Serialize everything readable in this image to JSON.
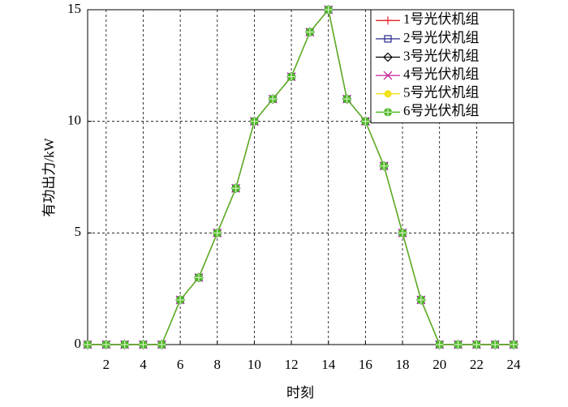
{
  "chart_data": {
    "type": "line",
    "x_label": "时刻",
    "y_label": "有功出力/kW",
    "x": [
      1,
      2,
      3,
      4,
      5,
      6,
      7,
      8,
      9,
      10,
      11,
      12,
      13,
      14,
      15,
      16,
      17,
      18,
      19,
      20,
      21,
      22,
      23,
      24
    ],
    "xlim": [
      1,
      24
    ],
    "xticks": [
      2,
      4,
      6,
      8,
      10,
      12,
      14,
      16,
      18,
      20,
      22,
      24
    ],
    "ylim": [
      0,
      15
    ],
    "yticks": [
      0,
      5,
      10,
      15
    ],
    "grid": true,
    "legend": "upper right",
    "series": [
      {
        "name": "1号光伏机组",
        "color": "#e8202a",
        "marker": "plus",
        "values": [
          0,
          0,
          0,
          0,
          0,
          2,
          3,
          5,
          7,
          10,
          11,
          12,
          14,
          15,
          11,
          10,
          8,
          5,
          2,
          0,
          0,
          0,
          0,
          0
        ]
      },
      {
        "name": "2号光伏机组",
        "color": "#2a2a8c",
        "marker": "square",
        "values": [
          0,
          0,
          0,
          0,
          0,
          2,
          3,
          5,
          7,
          10,
          11,
          12,
          14,
          15,
          11,
          10,
          8,
          5,
          2,
          0,
          0,
          0,
          0,
          0
        ]
      },
      {
        "name": "3号光伏机组",
        "color": "#000000",
        "marker": "diamond",
        "values": [
          0,
          0,
          0,
          0,
          0,
          2,
          3,
          5,
          7,
          10,
          11,
          12,
          14,
          15,
          11,
          10,
          8,
          5,
          2,
          0,
          0,
          0,
          0,
          0
        ]
      },
      {
        "name": "4号光伏机组",
        "color": "#c0219a",
        "marker": "x",
        "values": [
          0,
          0,
          0,
          0,
          0,
          2,
          3,
          5,
          7,
          10,
          11,
          12,
          14,
          15,
          11,
          10,
          8,
          5,
          2,
          0,
          0,
          0,
          0,
          0
        ]
      },
      {
        "name": "5号光伏机组",
        "color": "#f2e21c",
        "marker": "circle",
        "values": [
          0,
          0,
          0,
          0,
          0,
          2,
          3,
          5,
          7,
          10,
          11,
          12,
          14,
          15,
          11,
          10,
          8,
          5,
          2,
          0,
          0,
          0,
          0,
          0
        ]
      },
      {
        "name": "6号光伏机组",
        "color": "#4cb824",
        "marker": "circleplus",
        "values": [
          0,
          0,
          0,
          0,
          0,
          2,
          3,
          5,
          7,
          10,
          11,
          12,
          14,
          15,
          11,
          10,
          8,
          5,
          2,
          0,
          0,
          0,
          0,
          0
        ]
      }
    ]
  }
}
